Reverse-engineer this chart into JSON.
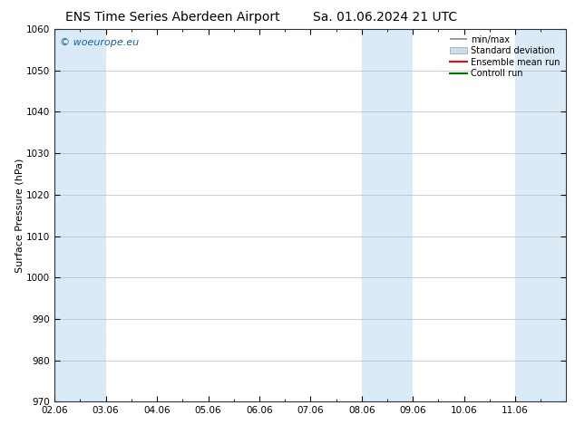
{
  "title": "ENS Time Series Aberdeen Airport",
  "title2": "Sa. 01.06.2024 21 UTC",
  "ylabel": "Surface Pressure (hPa)",
  "ylim": [
    970,
    1060
  ],
  "yticks": [
    970,
    980,
    990,
    1000,
    1010,
    1020,
    1030,
    1040,
    1050,
    1060
  ],
  "xlim": [
    0,
    10
  ],
  "xtick_labels": [
    "02.06",
    "03.06",
    "04.06",
    "05.06",
    "06.06",
    "07.06",
    "08.06",
    "09.06",
    "10.06",
    "11.06"
  ],
  "xtick_positions": [
    0,
    1,
    2,
    3,
    4,
    5,
    6,
    7,
    8,
    9
  ],
  "shaded_bands": [
    {
      "x_start": 0,
      "x_end": 1,
      "color": "#dbeaf7"
    },
    {
      "x_start": 6,
      "x_end": 7,
      "color": "#dbeaf7"
    },
    {
      "x_start": 9,
      "x_end": 10,
      "color": "#dbeaf7"
    }
  ],
  "watermark_text": "© woeurope.eu",
  "watermark_color": "#1a5fa8",
  "legend_items": [
    {
      "label": "min/max",
      "color": "#aaaaaa",
      "style": "errorbar"
    },
    {
      "label": "Standard deviation",
      "color": "#c8ddf0",
      "style": "box"
    },
    {
      "label": "Ensemble mean run",
      "color": "#ff0000",
      "style": "line"
    },
    {
      "label": "Controll run",
      "color": "#007000",
      "style": "line"
    }
  ],
  "bg_color": "#ffffff",
  "grid_color": "#bbbbbb",
  "title_fontsize": 10,
  "axis_fontsize": 7.5,
  "ylabel_fontsize": 8,
  "legend_fontsize": 7
}
